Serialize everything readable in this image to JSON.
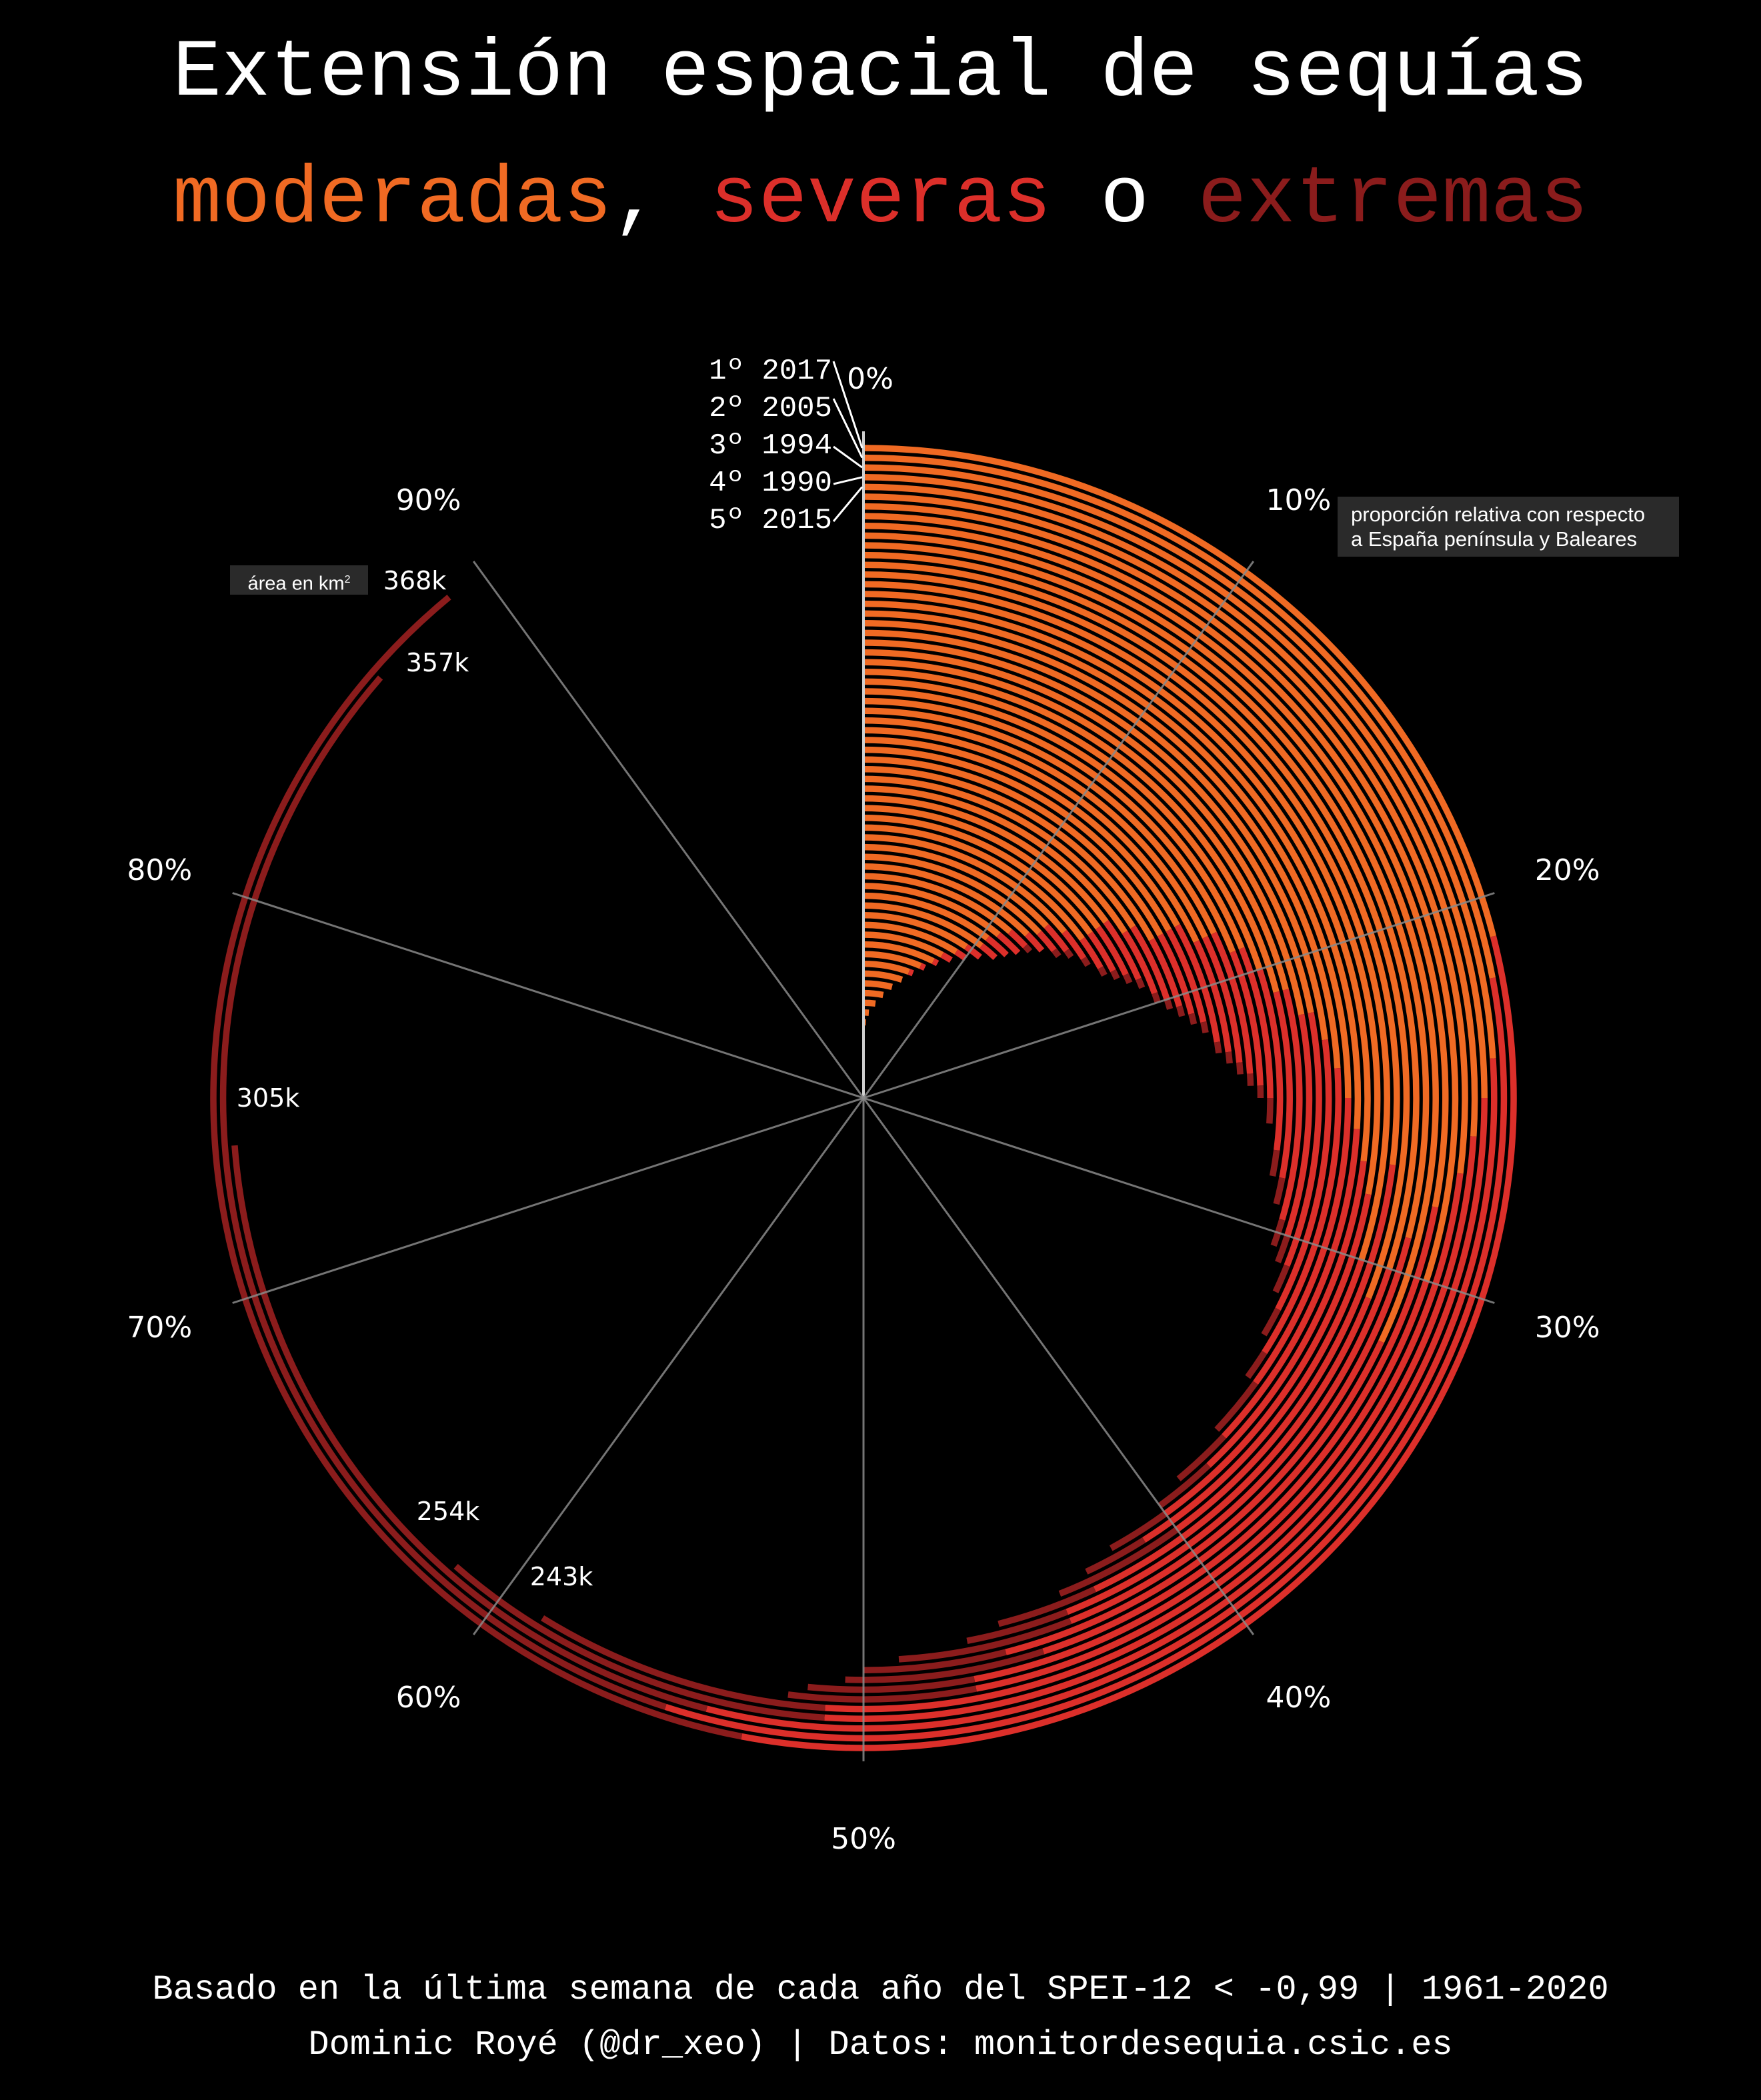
{
  "title": {
    "line1": "Extensión espacial de sequías",
    "moderate_word": "moderadas",
    "comma": ", ",
    "severe_word": "severas",
    "or_word": " o ",
    "extreme_word": "extremas"
  },
  "colors": {
    "moderate": "#f06a23",
    "severe": "#dc2f2a",
    "extreme": "#8b1c1c",
    "grid": "#8a8a8a",
    "background": "#000000"
  },
  "notes": {
    "area_unit": "área en km",
    "area_unit_sup": "2",
    "proportion_line1": "proporción relativa con respecto",
    "proportion_line2": "a España península y Baleares"
  },
  "footer": {
    "line1": "Basado en la última semana de cada año del SPEI-12 < -0,99 | 1961-2020",
    "line2": "Dominic Royé (@dr_xeo) | Datos: monitordesequia.csic.es"
  },
  "chart_data": {
    "type": "radial-stacked-bar",
    "title": "Extensión espacial de sequías moderadas, severas o extremas",
    "axis_range": [
      0,
      100
    ],
    "tick_labels": [
      "0%",
      "10%",
      "20%",
      "30%",
      "40%",
      "50%",
      "60%",
      "70%",
      "80%",
      "90%"
    ],
    "series_names": [
      "moderadas",
      "severas",
      "extremas"
    ],
    "top_ranked": [
      {
        "rank": "1º",
        "year": "2017",
        "area_label": "368k"
      },
      {
        "rank": "2º",
        "year": "2005",
        "area_label": "357k"
      },
      {
        "rank": "3º",
        "year": "1994",
        "area_label": "305k"
      },
      {
        "rank": "4º",
        "year": "1990",
        "area_label": "254k"
      },
      {
        "rank": "5º",
        "year": "2015",
        "area_label": "243k"
      }
    ],
    "moderate": [
      21,
      22,
      24,
      25,
      26,
      27,
      30,
      28,
      32,
      29,
      30,
      31,
      27,
      30,
      28,
      27,
      26,
      25,
      24,
      23,
      22,
      22,
      21,
      21,
      20,
      19,
      19,
      18,
      18,
      18,
      17,
      17,
      17,
      17,
      16,
      16,
      15,
      15,
      15,
      15,
      14,
      13,
      13,
      12.5,
      11.5,
      11,
      10.5,
      10.5,
      9.5,
      9,
      8,
      7.5,
      6.5,
      5.5,
      5,
      4,
      3,
      2,
      1,
      0.5
    ],
    "severe": [
      32,
      33,
      30,
      26,
      25,
      20,
      17,
      17,
      14,
      15,
      14,
      12,
      13,
      11,
      12,
      11,
      11,
      10,
      10,
      9.5,
      9,
      8,
      8.5,
      7,
      7,
      6,
      5.5,
      6,
      5.5,
      5,
      5.5,
      4.5,
      4,
      3.5,
      4,
      3.5,
      3.5,
      3,
      2.5,
      2,
      2,
      2,
      1.5,
      1.5,
      1.5,
      2,
      2,
      1.5,
      1.5,
      1,
      1,
      0.5,
      0.5,
      0.5,
      0,
      0,
      0,
      0,
      0,
      0
    ],
    "extreme": [
      36,
      31.4,
      19.8,
      10.4,
      7.8,
      5,
      4.5,
      5.5,
      4,
      5,
      3,
      3,
      4,
      2,
      2,
      2,
      2,
      2,
      1,
      1,
      1,
      1,
      1,
      1,
      1,
      1,
      0.5,
      0.5,
      0.5,
      0.5,
      0.5,
      0.5,
      0.5,
      0.5,
      0.5,
      0.5,
      0.5,
      0.5,
      0.5,
      0.5,
      0.5,
      0.5,
      0.5,
      0,
      0.5,
      0,
      0,
      0,
      0,
      0,
      0,
      0,
      0,
      0,
      0,
      0,
      0,
      0,
      0,
      0
    ]
  }
}
